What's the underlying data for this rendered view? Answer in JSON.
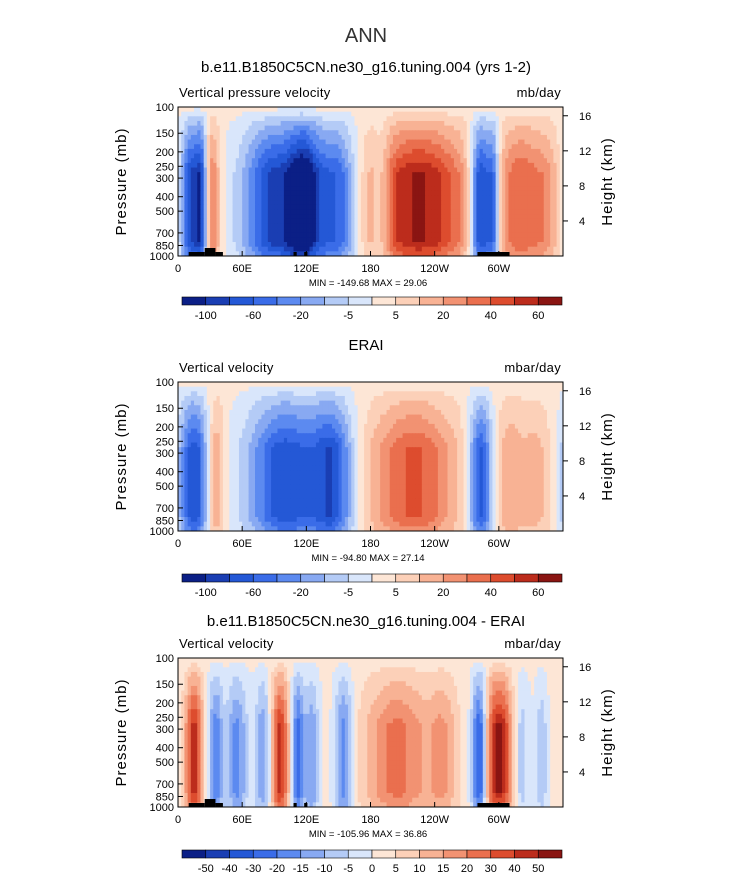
{
  "page": {
    "title": "ANN"
  },
  "colormap": {
    "main": [
      "#0b1f86",
      "#1a3eb3",
      "#2458d6",
      "#3a6ce8",
      "#5c8af0",
      "#88a9f2",
      "#b4cbf6",
      "#d9e6fb",
      "#fde6d6",
      "#fcd0b8",
      "#f8b294",
      "#f29272",
      "#ea6f4e",
      "#dd4c2e",
      "#bc2c1c",
      "#8a1512"
    ],
    "diff": [
      "#0b1f86",
      "#1a3eb3",
      "#2458d6",
      "#3a6ce8",
      "#5c8af0",
      "#88a9f2",
      "#b4cbf6",
      "#d9e6fb",
      "#fde6d6",
      "#fcd0b8",
      "#f8b294",
      "#f29272",
      "#ea6f4e",
      "#dd4c2e",
      "#bc2c1c",
      "#8a1512"
    ]
  },
  "chart_data": [
    {
      "type": "heatmap",
      "title": "b.e11.B1850C5CN.ne30_g16.tuning.004 (yrs 1-2)",
      "left_label": "Vertical pressure velocity",
      "right_label": "mb/day",
      "ylabel": "Pressure (mb)",
      "ylabel_right": "Height (km)",
      "x_ticks": [
        "0",
        "60E",
        "120E",
        "180",
        "120W",
        "60W"
      ],
      "y_ticks": [
        "100",
        "150",
        "200",
        "250",
        "300",
        "400",
        "500",
        "700",
        "850",
        "1000"
      ],
      "y_ticks_right": [
        "16",
        "12",
        "8",
        "4"
      ],
      "stats": "MIN = -149.68   MAX =  29.06",
      "colorbar_labels": [
        "-100",
        "-60",
        "-20",
        "-5",
        "5",
        "20",
        "40",
        "60"
      ],
      "features": [
        {
          "lon": 12,
          "amp": -0.8,
          "w": 7
        },
        {
          "lon": 22,
          "amp": -0.6,
          "w": 4
        },
        {
          "lon": 32,
          "amp": 0.5,
          "w": 5
        },
        {
          "lon": 92,
          "amp": -0.85,
          "w": 22
        },
        {
          "lon": 118,
          "amp": -0.7,
          "w": 10
        },
        {
          "lon": 148,
          "amp": -0.7,
          "w": 15
        },
        {
          "lon": 190,
          "amp": -0.3,
          "w": 6
        },
        {
          "lon": 225,
          "amp": 0.85,
          "w": 35
        },
        {
          "lon": 283,
          "amp": -1.0,
          "w": 7
        },
        {
          "lon": 295,
          "amp": -0.6,
          "w": 4
        },
        {
          "lon": 320,
          "amp": 0.55,
          "w": 14
        },
        {
          "lon": 345,
          "amp": 0.3,
          "w": 10
        }
      ],
      "topography": [
        [
          10,
          25,
          1
        ],
        [
          25,
          35,
          2
        ],
        [
          35,
          42,
          1
        ],
        [
          108,
          111,
          1
        ],
        [
          118,
          121,
          1
        ],
        [
          280,
          310,
          1
        ]
      ]
    },
    {
      "type": "heatmap",
      "title": "ERAI",
      "left_label": "Vertical velocity",
      "right_label": "mbar/day",
      "ylabel": "Pressure (mb)",
      "ylabel_right": "Height (km)",
      "x_ticks": [
        "0",
        "60E",
        "120E",
        "180",
        "120W",
        "60W"
      ],
      "y_ticks": [
        "100",
        "150",
        "200",
        "250",
        "300",
        "400",
        "500",
        "700",
        "850",
        "1000"
      ],
      "y_ticks_right": [
        "16",
        "12",
        "8",
        "4"
      ],
      "stats": "MIN =  -94.80   MAX =  27.14",
      "colorbar_labels": [
        "-100",
        "-60",
        "-20",
        "-5",
        "5",
        "20",
        "40",
        "60"
      ],
      "features": [
        {
          "lon": 15,
          "amp": -0.75,
          "w": 10
        },
        {
          "lon": 35,
          "amp": 0.4,
          "w": 6
        },
        {
          "lon": 100,
          "amp": -0.75,
          "w": 25
        },
        {
          "lon": 145,
          "amp": -0.65,
          "w": 14
        },
        {
          "lon": 220,
          "amp": 0.6,
          "w": 30
        },
        {
          "lon": 283,
          "amp": -0.75,
          "w": 8
        },
        {
          "lon": 310,
          "amp": 0.3,
          "w": 10
        },
        {
          "lon": 335,
          "amp": 0.25,
          "w": 10
        }
      ],
      "topography": []
    },
    {
      "type": "heatmap",
      "title": "b.e11.B1850C5CN.ne30_g16.tuning.004 - ERAI",
      "left_label": "Vertical velocity",
      "right_label": "mbar/day",
      "ylabel": "Pressure (mb)",
      "ylabel_right": "Height (km)",
      "x_ticks": [
        "0",
        "60E",
        "120E",
        "180",
        "120W",
        "60W"
      ],
      "y_ticks": [
        "100",
        "150",
        "200",
        "250",
        "300",
        "400",
        "500",
        "700",
        "850",
        "1000"
      ],
      "y_ticks_right": [
        "16",
        "12",
        "8",
        "4"
      ],
      "stats": "MIN = -105.96   MAX =  36.86",
      "colorbar_labels": [
        "-50",
        "-40",
        "-30",
        "-20",
        "-15",
        "-10",
        "-5",
        "0",
        "5",
        "10",
        "15",
        "20",
        "30",
        "40",
        "50"
      ],
      "features": [
        {
          "lon": 15,
          "amp": 0.75,
          "w": 6
        },
        {
          "lon": 35,
          "amp": -0.5,
          "w": 5
        },
        {
          "lon": 55,
          "amp": -0.45,
          "w": 7
        },
        {
          "lon": 80,
          "amp": -0.4,
          "w": 6
        },
        {
          "lon": 95,
          "amp": 0.75,
          "w": 6
        },
        {
          "lon": 112,
          "amp": -0.6,
          "w": 4
        },
        {
          "lon": 125,
          "amp": -0.4,
          "w": 5
        },
        {
          "lon": 155,
          "amp": -0.5,
          "w": 6
        },
        {
          "lon": 205,
          "amp": 0.5,
          "w": 22
        },
        {
          "lon": 248,
          "amp": 0.3,
          "w": 10
        },
        {
          "lon": 282,
          "amp": -0.8,
          "w": 5
        },
        {
          "lon": 300,
          "amp": 0.85,
          "w": 10
        },
        {
          "lon": 320,
          "amp": -0.3,
          "w": 6
        },
        {
          "lon": 340,
          "amp": -0.25,
          "w": 4
        }
      ],
      "topography": [
        [
          10,
          25,
          1
        ],
        [
          25,
          35,
          2
        ],
        [
          35,
          42,
          1
        ],
        [
          108,
          111,
          1
        ],
        [
          118,
          121,
          1
        ],
        [
          280,
          310,
          1
        ]
      ]
    }
  ]
}
